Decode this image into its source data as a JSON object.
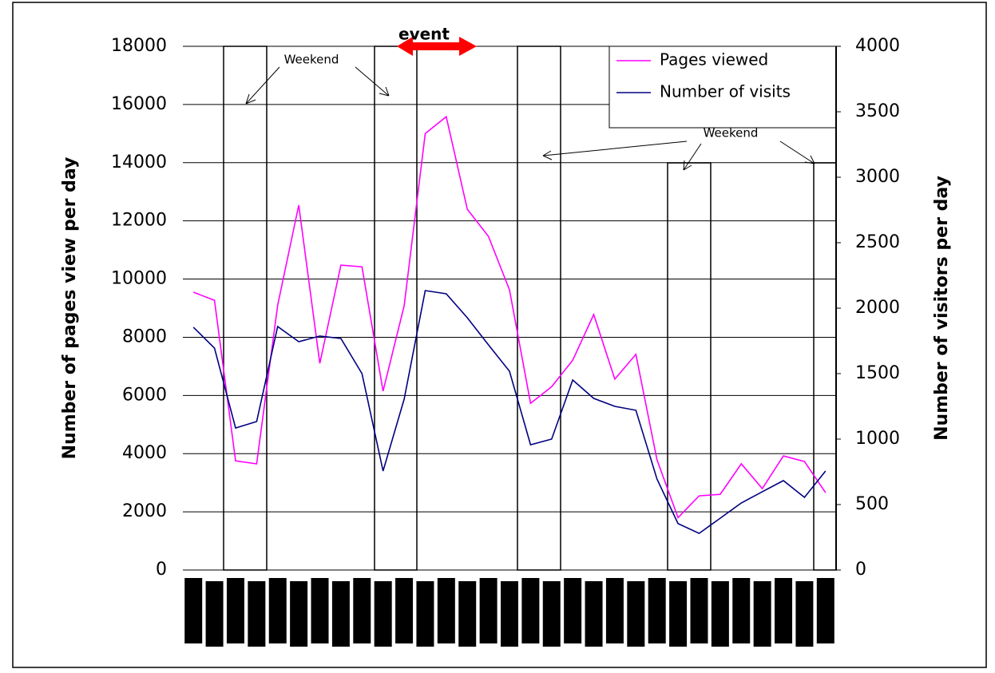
{
  "chart_data": {
    "type": "line",
    "y_label": "Number of pages view per day",
    "y2_label": "Number of visitors per day",
    "annotations": [
      "Weekend",
      "Weekend",
      "event"
    ],
    "categories": [
      null,
      null,
      null,
      null,
      null,
      null,
      null,
      null,
      null,
      null,
      null,
      null,
      null,
      null,
      null,
      null,
      null,
      null,
      null,
      null,
      null,
      null,
      null,
      null,
      null,
      null,
      null,
      null,
      null,
      null,
      null
    ],
    "series": [
      {
        "name": "Pages viewed",
        "color": "#ff00ff",
        "values": [
          9550,
          9270,
          3750,
          3650,
          9100,
          12540,
          7100,
          10480,
          10420,
          6150,
          9080,
          15000,
          15580,
          12400,
          11470,
          9630,
          5730,
          6300,
          7210,
          8780,
          6560,
          7410,
          3790,
          1800,
          2550,
          2600,
          3650,
          2800,
          3920,
          3730,
          2660
        ]
      },
      {
        "name": "Number of visits",
        "color": "#000080",
        "axis": "y2",
        "values": [
          1854,
          1695,
          1085,
          1134,
          1860,
          1744,
          1787,
          1768,
          1500,
          756,
          1305,
          2134,
          2110,
          1927,
          1720,
          1518,
          957,
          1000,
          1451,
          1311,
          1250,
          1220,
          695,
          354,
          280,
          396,
          512,
          598,
          683,
          555,
          756
        ]
      }
    ],
    "ylim": [
      0,
      18000
    ],
    "yticks": [
      0,
      2000,
      4000,
      6000,
      8000,
      10000,
      12000,
      14000,
      16000,
      18000
    ],
    "y2lim": [
      0,
      4000
    ],
    "y2ticks": [
      0,
      500,
      1000,
      1500,
      2000,
      2500,
      3000,
      3500,
      4000
    ],
    "grid": true,
    "legend": "top-right"
  }
}
